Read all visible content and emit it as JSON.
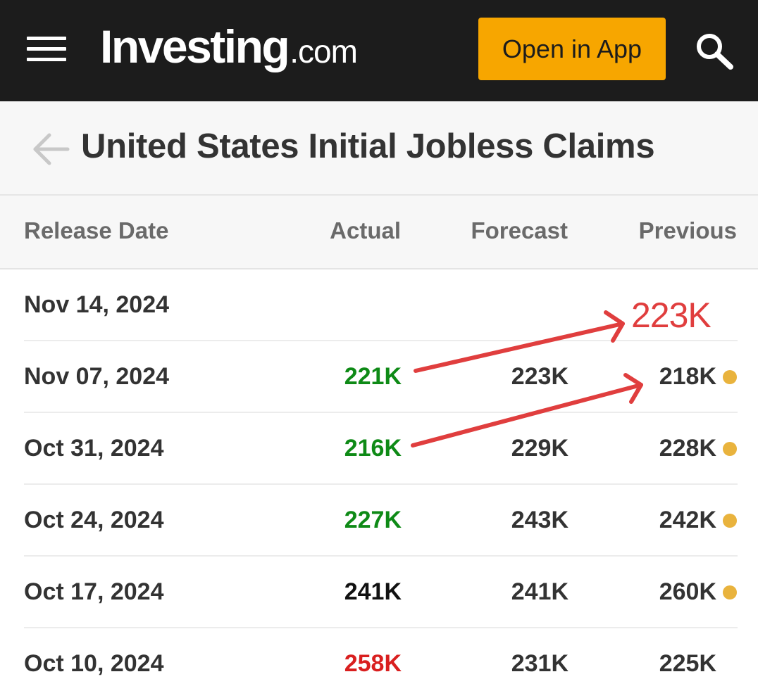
{
  "header": {
    "logo_main": "Investing",
    "logo_tld": ".com",
    "open_app_label": "Open in App",
    "icons": {
      "menu": "hamburger-menu-icon",
      "search": "search-icon"
    },
    "colors": {
      "bar": "#1c1c1c",
      "open_app_bg": "#f7a600"
    }
  },
  "title_bar": {
    "title": "United States Initial Jobless Claims",
    "back_icon": "back-arrow-icon"
  },
  "table": {
    "columns": [
      "Release Date",
      "Actual",
      "Forecast",
      "Previous"
    ],
    "rows": [
      {
        "date": "Nov 14, 2024",
        "actual": "",
        "forecast": "",
        "previous": "",
        "actual_status": "none",
        "revised": false
      },
      {
        "date": "Nov 07, 2024",
        "actual": "221K",
        "forecast": "223K",
        "previous": "218K",
        "actual_status": "better",
        "revised": true
      },
      {
        "date": "Oct 31, 2024",
        "actual": "216K",
        "forecast": "229K",
        "previous": "228K",
        "actual_status": "better",
        "revised": true
      },
      {
        "date": "Oct 24, 2024",
        "actual": "227K",
        "forecast": "243K",
        "previous": "242K",
        "actual_status": "better",
        "revised": true
      },
      {
        "date": "Oct 17, 2024",
        "actual": "241K",
        "forecast": "241K",
        "previous": "260K",
        "actual_status": "neutral",
        "revised": true
      },
      {
        "date": "Oct 10, 2024",
        "actual": "258K",
        "forecast": "231K",
        "previous": "225K",
        "actual_status": "worse",
        "revised": false
      }
    ],
    "status_colors": {
      "better": "#0e8a16",
      "worse": "#d91f1f",
      "neutral": "#111111",
      "revised_dot": "#e9b33d"
    }
  },
  "annotation": {
    "text": "223K",
    "color": "#e03e3e"
  }
}
